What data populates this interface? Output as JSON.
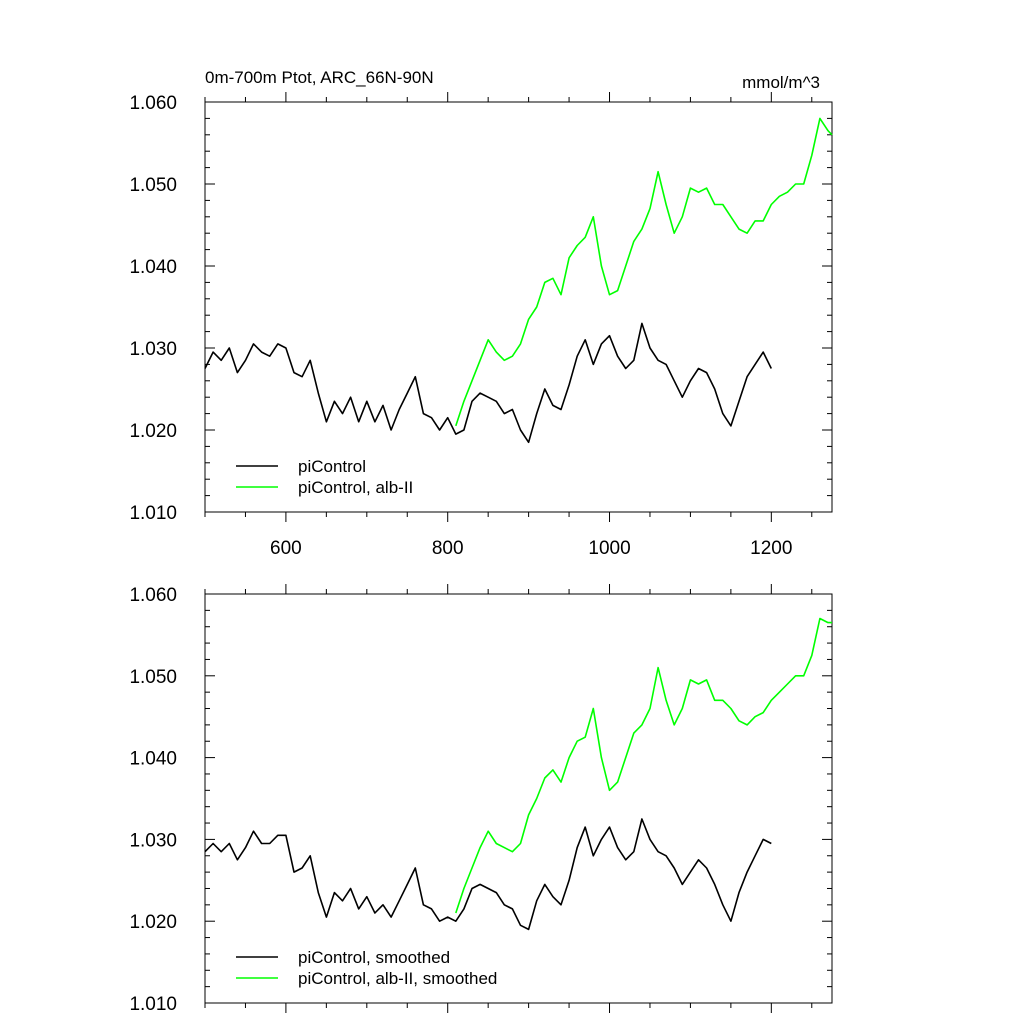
{
  "chart_data": [
    {
      "type": "line",
      "title": "0m-700m Ptot, ARC_66N-90N",
      "units": "mmol/m^3",
      "xlim": [
        500,
        1275
      ],
      "ylim": [
        1.01,
        1.06
      ],
      "xticks": [
        600,
        800,
        1000,
        1200
      ],
      "xtick_labels": [
        "600",
        "800",
        "1000",
        "1200"
      ],
      "yticks": [
        1.01,
        1.02,
        1.03,
        1.04,
        1.05,
        1.06
      ],
      "ytick_labels": [
        "1.010",
        "1.020",
        "1.030",
        "1.040",
        "1.050",
        "1.060"
      ],
      "grid": false,
      "legend_position": "bottom-left",
      "series": [
        {
          "name": "piControl",
          "color": "#000000",
          "x": [
            500,
            510,
            520,
            530,
            540,
            550,
            560,
            570,
            580,
            590,
            600,
            610,
            620,
            630,
            640,
            650,
            660,
            670,
            680,
            690,
            700,
            710,
            720,
            730,
            740,
            750,
            760,
            770,
            780,
            790,
            800,
            810,
            820,
            830,
            840,
            850,
            860,
            870,
            880,
            890,
            900,
            910,
            920,
            930,
            940,
            950,
            960,
            970,
            980,
            990,
            1000,
            1010,
            1020,
            1030,
            1040,
            1050,
            1060,
            1070,
            1080,
            1090,
            1100,
            1110,
            1120,
            1130,
            1140,
            1150,
            1160,
            1170,
            1180,
            1190,
            1200
          ],
          "values": [
            1.0275,
            1.0295,
            1.0285,
            1.03,
            1.027,
            1.0285,
            1.0305,
            1.0295,
            1.029,
            1.0305,
            1.03,
            1.027,
            1.0265,
            1.0285,
            1.0245,
            1.021,
            1.0235,
            1.022,
            1.024,
            1.021,
            1.0235,
            1.021,
            1.023,
            1.02,
            1.0225,
            1.0245,
            1.0265,
            1.022,
            1.0215,
            1.02,
            1.0215,
            1.0195,
            1.02,
            1.0235,
            1.0245,
            1.024,
            1.0235,
            1.022,
            1.0225,
            1.02,
            1.0185,
            1.022,
            1.025,
            1.023,
            1.0225,
            1.0255,
            1.029,
            1.031,
            1.028,
            1.0305,
            1.0315,
            1.029,
            1.0275,
            1.0285,
            1.033,
            1.03,
            1.0285,
            1.028,
            1.026,
            1.024,
            1.026,
            1.0275,
            1.027,
            1.025,
            1.022,
            1.0205,
            1.0235,
            1.0265,
            1.028,
            1.0295,
            1.0275
          ]
        },
        {
          "name": "piControl, alb-II",
          "color": "#00ff00",
          "x": [
            810,
            820,
            830,
            840,
            850,
            860,
            870,
            880,
            890,
            900,
            910,
            920,
            930,
            940,
            950,
            960,
            970,
            980,
            990,
            1000,
            1010,
            1020,
            1030,
            1040,
            1050,
            1060,
            1070,
            1080,
            1090,
            1100,
            1110,
            1120,
            1130,
            1140,
            1150,
            1160,
            1170,
            1180,
            1190,
            1200,
            1210,
            1220,
            1230,
            1240,
            1250,
            1260,
            1270,
            1275
          ],
          "values": [
            1.0205,
            1.0235,
            1.026,
            1.0285,
            1.031,
            1.0295,
            1.0285,
            1.029,
            1.0305,
            1.0335,
            1.035,
            1.038,
            1.0385,
            1.0365,
            1.041,
            1.0425,
            1.0435,
            1.046,
            1.04,
            1.0365,
            1.037,
            1.04,
            1.043,
            1.0445,
            1.047,
            1.0515,
            1.0475,
            1.044,
            1.046,
            1.0495,
            1.049,
            1.0495,
            1.0475,
            1.0475,
            1.046,
            1.0445,
            1.044,
            1.0455,
            1.0455,
            1.0475,
            1.0485,
            1.049,
            1.05,
            1.05,
            1.0535,
            1.058,
            1.0565,
            1.056
          ]
        }
      ]
    },
    {
      "type": "line",
      "xlim": [
        500,
        1275
      ],
      "ylim": [
        1.01,
        1.06
      ],
      "xticks": [
        600,
        800,
        1000,
        1200
      ],
      "yticks": [
        1.01,
        1.02,
        1.03,
        1.04,
        1.05,
        1.06
      ],
      "ytick_labels": [
        "1.010",
        "1.020",
        "1.030",
        "1.040",
        "1.050",
        "1.060"
      ],
      "grid": false,
      "legend_position": "bottom-left",
      "series": [
        {
          "name": "piControl, smoothed",
          "color": "#000000",
          "x": [
            500,
            510,
            520,
            530,
            540,
            550,
            560,
            570,
            580,
            590,
            600,
            610,
            620,
            630,
            640,
            650,
            660,
            670,
            680,
            690,
            700,
            710,
            720,
            730,
            740,
            750,
            760,
            770,
            780,
            790,
            800,
            810,
            820,
            830,
            840,
            850,
            860,
            870,
            880,
            890,
            900,
            910,
            920,
            930,
            940,
            950,
            960,
            970,
            980,
            990,
            1000,
            1010,
            1020,
            1030,
            1040,
            1050,
            1060,
            1070,
            1080,
            1090,
            1100,
            1110,
            1120,
            1130,
            1140,
            1150,
            1160,
            1170,
            1180,
            1190,
            1200
          ],
          "values": [
            1.0285,
            1.0295,
            1.0285,
            1.0295,
            1.0275,
            1.029,
            1.031,
            1.0295,
            1.0295,
            1.0305,
            1.0305,
            1.026,
            1.0265,
            1.028,
            1.0235,
            1.0205,
            1.0235,
            1.0225,
            1.024,
            1.0215,
            1.023,
            1.021,
            1.022,
            1.0205,
            1.0225,
            1.0245,
            1.0265,
            1.022,
            1.0215,
            1.02,
            1.0205,
            1.02,
            1.0215,
            1.024,
            1.0245,
            1.024,
            1.0235,
            1.022,
            1.0215,
            1.0195,
            1.019,
            1.0225,
            1.0245,
            1.023,
            1.022,
            1.025,
            1.029,
            1.0315,
            1.028,
            1.03,
            1.0315,
            1.029,
            1.0275,
            1.0285,
            1.0325,
            1.03,
            1.0285,
            1.028,
            1.0265,
            1.0245,
            1.026,
            1.0275,
            1.0265,
            1.0245,
            1.022,
            1.02,
            1.0235,
            1.026,
            1.028,
            1.03,
            1.0295
          ]
        },
        {
          "name": "piControl, alb-II, smoothed",
          "color": "#00ff00",
          "x": [
            810,
            820,
            830,
            840,
            850,
            860,
            870,
            880,
            890,
            900,
            910,
            920,
            930,
            940,
            950,
            960,
            970,
            980,
            990,
            1000,
            1010,
            1020,
            1030,
            1040,
            1050,
            1060,
            1070,
            1080,
            1090,
            1100,
            1110,
            1120,
            1130,
            1140,
            1150,
            1160,
            1170,
            1180,
            1190,
            1200,
            1210,
            1220,
            1230,
            1240,
            1250,
            1260,
            1270,
            1275
          ],
          "values": [
            1.021,
            1.024,
            1.0265,
            1.029,
            1.031,
            1.0295,
            1.029,
            1.0285,
            1.0295,
            1.033,
            1.035,
            1.0375,
            1.0385,
            1.037,
            1.04,
            1.042,
            1.0425,
            1.046,
            1.04,
            1.036,
            1.037,
            1.04,
            1.043,
            1.044,
            1.046,
            1.051,
            1.047,
            1.044,
            1.046,
            1.0495,
            1.049,
            1.0495,
            1.047,
            1.047,
            1.046,
            1.0445,
            1.044,
            1.045,
            1.0455,
            1.047,
            1.048,
            1.049,
            1.05,
            1.05,
            1.0525,
            1.057,
            1.0565,
            1.0565
          ]
        }
      ]
    }
  ]
}
